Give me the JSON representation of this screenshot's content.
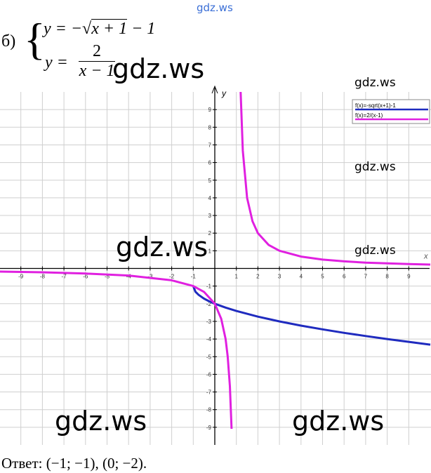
{
  "problem": {
    "label": "б)",
    "eq1_left": "y = −√",
    "eq1_radicand": "x + 1",
    "eq1_right": " − 1",
    "eq2_left": "y =",
    "eq2_num": "2",
    "eq2_den": "x − 1"
  },
  "chart_data": {
    "type": "line",
    "x_label": "x",
    "y_label": "y",
    "xlim": [
      -10,
      10
    ],
    "ylim": [
      -10,
      10
    ],
    "xticks": [
      -9,
      -8,
      -7,
      -6,
      -5,
      -4,
      -3,
      -2,
      -1,
      1,
      2,
      3,
      4,
      5,
      6,
      7,
      8,
      9
    ],
    "yticks": [
      -9,
      -8,
      -7,
      -6,
      -5,
      -4,
      -3,
      -2,
      -1,
      1,
      2,
      3,
      4,
      5,
      6,
      7,
      8,
      9
    ],
    "grid": true,
    "legend": "upper right",
    "series": [
      {
        "name": "f(x)=-sqrt(x+1)-1",
        "color": "#1f2bbf",
        "x": [
          -1,
          -0.9,
          -0.75,
          -0.5,
          -0.25,
          0,
          0.5,
          1,
          2,
          3,
          4,
          5,
          6,
          7,
          8,
          9,
          10
        ],
        "values": [
          -1,
          -1.32,
          -1.5,
          -1.71,
          -1.87,
          -2,
          -2.22,
          -2.41,
          -2.73,
          -3,
          -3.24,
          -3.45,
          -3.65,
          -3.83,
          -4,
          -4.16,
          -4.32
        ]
      },
      {
        "name": "f(x)=2/(x-1)",
        "color": "#e020e0",
        "x": [
          -10,
          -8,
          -6,
          -4,
          -2,
          -1,
          -0.5,
          0,
          0.3,
          0.5,
          0.6,
          0.7,
          0.78,
          1,
          1.2,
          1.3,
          1.5,
          1.75,
          2,
          2.5,
          3,
          4,
          5,
          6,
          7,
          8,
          9,
          10
        ],
        "values": [
          -0.18,
          -0.22,
          -0.29,
          -0.4,
          -0.67,
          -1,
          -1.33,
          -2,
          -2.86,
          -4,
          -5,
          -6.67,
          -9.09,
          null,
          10,
          6.67,
          4,
          2.67,
          2,
          1.33,
          1,
          0.67,
          0.5,
          0.4,
          0.33,
          0.29,
          0.25,
          0.22
        ]
      }
    ]
  },
  "answer": "Ответ: (−1;  −1), (0;  −2).",
  "watermarks": [
    "gdz.ws",
    "gdz.ws",
    "gdz.ws",
    "gdz.ws",
    "gdz.ws",
    "gdz.ws",
    "gdz.ws",
    "gdz.ws"
  ]
}
